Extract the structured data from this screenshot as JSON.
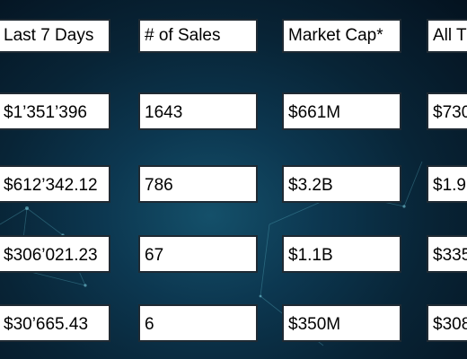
{
  "headers": [
    "Last 7 Days",
    "# of Sales",
    "Market Cap*",
    "All T"
  ],
  "rows": [
    [
      "$1’351’396",
      "1643",
      "$661M",
      "$730"
    ],
    [
      "$612’342.12",
      "786",
      "$3.2B",
      "$1.9"
    ],
    [
      "$306’021.23",
      "67",
      "$1.1B",
      "$335"
    ],
    [
      "$30’665.43",
      "6",
      "$350M",
      "$308"
    ]
  ]
}
